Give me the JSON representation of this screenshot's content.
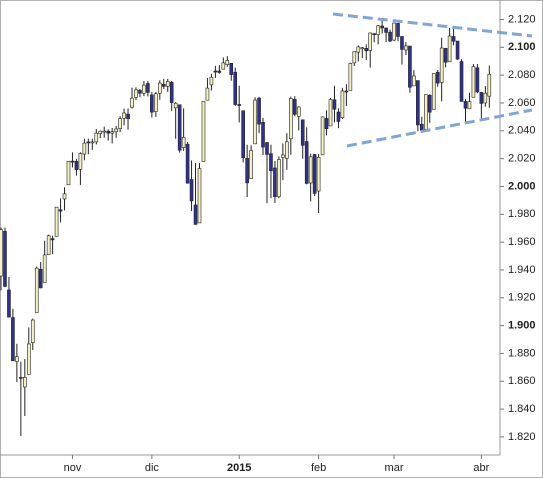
{
  "chart_data": {
    "type": "candlestick",
    "categories": [
      null,
      null,
      null,
      null,
      null,
      null,
      null,
      null,
      null,
      null,
      null,
      null,
      null,
      null,
      null,
      null,
      null,
      null,
      "nov",
      null,
      null,
      null,
      null,
      null,
      null,
      null,
      null,
      null,
      null,
      null,
      null,
      null,
      null,
      null,
      null,
      null,
      null,
      null,
      "dic",
      null,
      null,
      null,
      null,
      null,
      null,
      null,
      null,
      null,
      null,
      null,
      null,
      null,
      null,
      null,
      null,
      null,
      null,
      null,
      null,
      null,
      "2015",
      null,
      null,
      null,
      null,
      null,
      null,
      null,
      null,
      null,
      null,
      null,
      null,
      null,
      null,
      null,
      null,
      null,
      null,
      null,
      "feb",
      null,
      null,
      null,
      null,
      null,
      null,
      null,
      null,
      null,
      null,
      null,
      null,
      null,
      null,
      null,
      null,
      null,
      null,
      "mar",
      null,
      null,
      null,
      null,
      null,
      null,
      null,
      null,
      null,
      null,
      null,
      null,
      null,
      null,
      null,
      null,
      null,
      null,
      null,
      null,
      null,
      "abr",
      null,
      null
    ],
    "open": [
      1935.6,
      1967.7,
      1925.6,
      1905.7,
      1874.2,
      1862.8,
      1855.9,
      1864.9,
      1887.8,
      1909.4,
      1940.5,
      1931.0,
      1951.0,
      1962.5,
      1964.1,
      1983.3,
      1991.0,
      2001.2,
      2018.2,
      2018.1,
      2012.3,
      2023.3,
      2032.0,
      2032.0,
      2032.0,
      2038.0,
      2039.7,
      2039.7,
      2038.3,
      2039.3,
      2041.5,
      2049.0,
      2052.0,
      2057.0,
      2064.0,
      2069.0,
      2067.0,
      2074.0,
      2065.8,
      2053.8,
      2067.0,
      2073.4,
      2072.0,
      2074.8,
      2056.5,
      2058.7,
      2027.9,
      2030.4,
      2005.0,
      1986.7,
      1973.8,
      2018.0,
      2062.0,
      2073.0,
      2083.0,
      2083.0,
      2084.3,
      2087.6,
      2088.5,
      2082.1,
      2058.9,
      2054.4,
      2020.2,
      2005.6,
      2030.6,
      2063.5,
      2046.1,
      2031.6,
      2023.5,
      2013.3,
      1992.7,
      2020.8,
      2020.2,
      2034.3,
      2062.6,
      2050.4,
      2047.9,
      2032.3,
      2002.5,
      2023.0,
      1996.7,
      2022.7,
      2048.9,
      2043.5,
      2062.3,
      2053.5,
      2049.4,
      2068.6,
      2069.0,
      2088.8,
      2096.5,
      2099.2,
      2099.3,
      2097.7,
      2109.8,
      2109.1,
      2115.3,
      2113.9,
      2110.9,
      2105.2,
      2117.2,
      2107.8,
      2098.1,
      2100.9,
      2072.3,
      2076.1,
      2044.7,
      2041.1,
      2065.6,
      2055.4,
      2082.1,
      2074.8,
      2099.3,
      2089.6,
      2107.8,
      2104.5,
      2089.8,
      2061.1,
      2055.8,
      2064.1,
      2085.3,
      2067.6,
      2060.0,
      2064.9
    ],
    "high": [
      1970.4,
      1970.4,
      1934.9,
      1912.1,
      1886.9,
      1874.1,
      1876.0,
      1898.7,
      1905.0,
      1942.5,
      1945.7,
      1961.0,
      1965.3,
      1964.6,
      1985.2,
      1991.4,
      1999.4,
      2018.2,
      2024.5,
      2019.8,
      2024.5,
      2034.3,
      2034.3,
      2034.3,
      2041.3,
      2040.3,
      2043.0,
      2041.0,
      2042.0,
      2043.5,
      2050.5,
      2056.0,
      2056.0,
      2071.0,
      2071.3,
      2070.0,
      2075.8,
      2075.8,
      2068.0,
      2068.0,
      2076.3,
      2077.3,
      2077.3,
      2075.8,
      2060.6,
      2058.9,
      2056.2,
      2032.0,
      2018.7,
      2016.9,
      2016.8,
      2061.3,
      2077.9,
      2081.0,
      2086.7,
      2087.3,
      2092.7,
      2093.6,
      2088.5,
      2085.4,
      2072.4,
      2054.4,
      2030.0,
      2029.6,
      2064.1,
      2064.4,
      2049.3,
      2031.6,
      2030.0,
      2018.2,
      2021.6,
      2030.9,
      2038.3,
      2064.6,
      2064.9,
      2057.6,
      2047.9,
      2042.5,
      2023.6,
      2023.3,
      2023.3,
      2050.3,
      2054.7,
      2063.6,
      2072.4,
      2056.2,
      2070.9,
      2073.5,
      2089.0,
      2097.0,
      2101.3,
      2100.2,
      2102.1,
      2110.6,
      2110.1,
      2116.0,
      2119.6,
      2113.9,
      2112.7,
      2117.5,
      2117.5,
      2107.8,
      2103.8,
      2100.9,
      2083.5,
      2076.1,
      2050.1,
      2066.0,
      2066.3,
      2081.4,
      2083.7,
      2106.9,
      2099.5,
      2113.9,
      2114.9,
      2104.5,
      2091.5,
      2062.8,
      2067.4,
      2088.0,
      2088.0,
      2067.6,
      2072.2,
      2086.9
    ],
    "low": [
      1925.3,
      1927.6,
      1906.1,
      1874.7,
      1859.4,
      1820.7,
      1835.0,
      1864.9,
      1882.4,
      1909.4,
      1926.8,
      1931.0,
      1951.4,
      1951.4,
      1964.1,
      1974.2,
      1982.8,
      2001.0,
      2013.7,
      2007.8,
      2001.0,
      2018.8,
      2023.2,
      2026.3,
      2030.2,
      2034.8,
      2035.0,
      2033.0,
      2030.9,
      2035.0,
      2039.0,
      2043.9,
      2040.8,
      2056.0,
      2062.0,
      2064.1,
      2064.9,
      2064.7,
      2049.6,
      2050.0,
      2062.3,
      2070.0,
      2068.0,
      2054.3,
      2034.2,
      2024.3,
      2025.6,
      2002.3,
      1982.3,
      1972.6,
      1973.8,
      2018.0,
      2062.0,
      2069.0,
      2078.0,
      2081.0,
      2084.0,
      2086.0,
      2076.0,
      2057.9,
      2046.0,
      2017.3,
      1992.4,
      2005.6,
      2030.6,
      2038.3,
      2022.6,
      1988.0,
      1991.5,
      1988.1,
      1991.5,
      2004.5,
      2012.0,
      2022.7,
      2050.4,
      2040.3,
      2019.9,
      2001.5,
      1989.2,
      1993.0,
      1980.9,
      2022.7,
      2036.7,
      2043.5,
      2046.0,
      2041.9,
      2048.6,
      2057.9,
      2069.0,
      2086.6,
      2089.8,
      2092.2,
      2090.8,
      2085.4,
      2103.6,
      2102.2,
      2109.9,
      2103.8,
      2103.8,
      2104.4,
      2104.4,
      2087.6,
      2094.5,
      2067.3,
      2072.3,
      2039.7,
      2039.7,
      2041.1,
      2045.7,
      2055.4,
      2071.6,
      2061.2,
      2085.6,
      2089.6,
      2101.4,
      2091.0,
      2061.1,
      2045.5,
      2055.8,
      2064.1,
      2067.0,
      2048.4,
      2057.3,
      2056.5
    ],
    "close": [
      1968.9,
      1928.2,
      1906.1,
      1874.7,
      1877.7,
      1862.5,
      1862.8,
      1886.8,
      1904.0,
      1941.3,
      1927.1,
      1950.8,
      1964.6,
      1961.6,
      1985.1,
      1982.3,
      1994.7,
      2018.1,
      2017.8,
      2012.1,
      2023.6,
      2031.2,
      2031.9,
      2032.0,
      2038.3,
      2039.7,
      2039.8,
      2038.3,
      2039.3,
      2041.3,
      2048.7,
      2052.8,
      2048.7,
      2063.5,
      2069.4,
      2067.0,
      2072.8,
      2067.6,
      2053.4,
      2066.6,
      2074.3,
      2071.9,
      2075.4,
      2060.3,
      2059.8,
      2026.1,
      2035.3,
      2002.3,
      1989.6,
      1972.7,
      2012.9,
      2061.2,
      2070.7,
      2078.5,
      2082.2,
      2081.9,
      2088.8,
      2090.6,
      2080.4,
      2058.9,
      2058.2,
      2020.6,
      2002.6,
      2025.9,
      2062.1,
      2044.8,
      2028.3,
      2023.0,
      2011.3,
      1992.7,
      2019.4,
      2022.6,
      2032.1,
      2063.2,
      2051.8,
      2057.1,
      2029.6,
      2002.2,
      2021.3,
      1995.0,
      2020.9,
      2050.0,
      2041.5,
      2062.5,
      2055.5,
      2046.7,
      2068.6,
      2068.5,
      2088.5,
      2097.0,
      2100.3,
      2099.7,
      2097.5,
      2110.3,
      2109.7,
      2115.5,
      2113.9,
      2110.7,
      2104.5,
      2117.4,
      2107.8,
      2098.5,
      2101.0,
      2071.3,
      2079.4,
      2044.2,
      2040.2,
      2066.0,
      2053.4,
      2081.2,
      2074.3,
      2099.5,
      2089.3,
      2108.1,
      2104.4,
      2091.5,
      2061.1,
      2056.2,
      2061.0,
      2086.2,
      2067.9,
      2059.7,
      2067.0,
      2080.6
    ],
    "up_color": "#f6f0bf",
    "down_color": "#2e3192",
    "ylim": [
      1807,
      2134
    ],
    "yticks": [
      {
        "value": 1820,
        "label": "1.820"
      },
      {
        "value": 1840,
        "label": "1.840"
      },
      {
        "value": 1860,
        "label": "1.860"
      },
      {
        "value": 1880,
        "label": "1.880"
      },
      {
        "value": 1900,
        "label": "1.900"
      },
      {
        "value": 1920,
        "label": "1.920"
      },
      {
        "value": 1940,
        "label": "1.940"
      },
      {
        "value": 1960,
        "label": "1.960"
      },
      {
        "value": 1980,
        "label": "1.980"
      },
      {
        "value": 2000,
        "label": "2.000"
      },
      {
        "value": 2020,
        "label": "2.020"
      },
      {
        "value": 2040,
        "label": "2.040"
      },
      {
        "value": 2060,
        "label": "2.060"
      },
      {
        "value": 2080,
        "label": "2.080"
      },
      {
        "value": 2100,
        "label": "2.100"
      },
      {
        "value": 2120,
        "label": "2.120"
      }
    ],
    "grid": false
  }
}
